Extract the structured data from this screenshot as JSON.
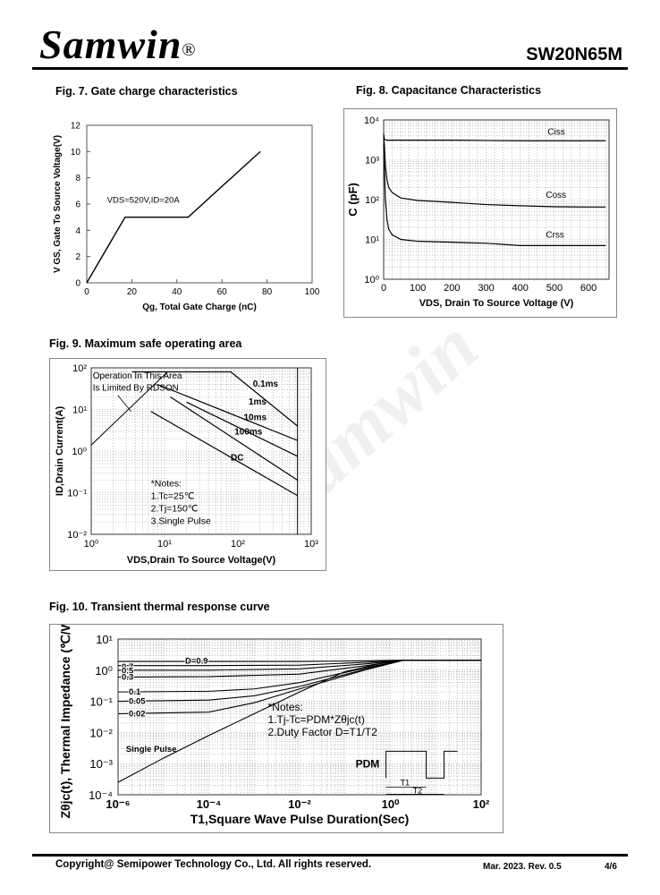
{
  "header": {
    "logo": "Samwin",
    "reg": "®",
    "part_number": "SW20N65M"
  },
  "watermark": "Samwin",
  "fig7": {
    "title": "Fig. 7. Gate charge characteristics",
    "ylabel": "V GS, Gate To Source Voltage(V)",
    "xlabel": "Qg, Total Gate Charge (nC)",
    "annotation": "VDS=520V,ID=20A",
    "chart_data": {
      "type": "line",
      "x": [
        0,
        17,
        45,
        77
      ],
      "y": [
        0,
        5,
        5,
        10
      ],
      "xlim": [
        0,
        100
      ],
      "ylim": [
        0,
        12
      ],
      "xticks": [
        "0",
        "20",
        "40",
        "60",
        "80",
        "100"
      ],
      "yticks": [
        "0",
        "2",
        "4",
        "6",
        "8",
        "10",
        "12"
      ]
    }
  },
  "fig8": {
    "title": "Fig. 8. Capacitance Characteristics",
    "ylabel": "C (pF)",
    "xlabel": "VDS, Drain To Source Voltage (V)",
    "chart_data": {
      "type": "line",
      "xlim": [
        0,
        660
      ],
      "ylim_log10": [
        0,
        4
      ],
      "xticks": [
        "0",
        "100",
        "200",
        "300",
        "400",
        "500",
        "600"
      ],
      "yticks": [
        "10⁰",
        "10¹",
        "10²",
        "10³",
        "10⁴"
      ],
      "series": [
        {
          "name": "Ciss",
          "x": [
            0,
            2,
            5,
            10,
            25,
            50,
            100,
            200,
            300,
            400,
            500,
            650
          ],
          "y": [
            4500,
            3300,
            3200,
            3100,
            3100,
            3100,
            3100,
            3100,
            3050,
            3000,
            3000,
            3000
          ]
        },
        {
          "name": "Coss",
          "x": [
            0,
            2,
            5,
            10,
            15,
            25,
            50,
            100,
            150,
            200,
            300,
            400,
            500,
            600,
            650
          ],
          "y": [
            4000,
            2500,
            700,
            300,
            200,
            150,
            110,
            95,
            90,
            85,
            75,
            70,
            66,
            65,
            65
          ]
        },
        {
          "name": "Crss",
          "x": [
            0,
            2,
            5,
            10,
            15,
            25,
            50,
            100,
            200,
            300,
            400,
            500,
            600,
            650
          ],
          "y": [
            2500,
            700,
            100,
            30,
            18,
            13,
            10,
            9,
            8.5,
            8,
            7,
            7,
            7,
            7
          ]
        }
      ]
    }
  },
  "fig9": {
    "title": "Fig. 9. Maximum safe operating area",
    "ylabel": "ID,Drain Current(A)",
    "xlabel": "VDS,Drain To Source Voltage(V)",
    "area_note_1": "Operation In This Area",
    "area_note_2": "Is Limited By RDSON",
    "notes": [
      "*Notes:",
      "1.Tc=25℃",
      "2.Tj=150℃",
      "3.Single Pulse"
    ],
    "labels": [
      "0.1ms",
      "1ms",
      "10ms",
      "100ms",
      "DC"
    ],
    "chart_data": {
      "type": "line",
      "xlim_log10": [
        0,
        3
      ],
      "ylim_log10": [
        -2,
        2
      ],
      "xticks": [
        "10⁰",
        "10¹",
        "10²",
        "10³"
      ],
      "yticks": [
        "10⁻²",
        "10⁻¹",
        "10⁰",
        "10¹",
        "10²"
      ],
      "series": [
        {
          "name": "0.1ms",
          "x": [
            3.6,
            80,
            650
          ],
          "y": [
            80,
            80,
            4
          ]
        },
        {
          "name": "1ms",
          "x": [
            8,
            650
          ],
          "y": [
            40,
            1.8
          ]
        },
        {
          "name": "10ms",
          "x": [
            20,
            650
          ],
          "y": [
            15,
            0.75
          ]
        },
        {
          "name": "100ms",
          "x": [
            12,
            650
          ],
          "y": [
            20,
            0.2
          ]
        },
        {
          "name": "DC",
          "x": [
            6.5,
            650
          ],
          "y": [
            9,
            0.085
          ]
        }
      ]
    }
  },
  "fig10": {
    "title": "Fig. 10. Transient thermal response curve",
    "ylabel": "Zθjc(t), Thermal Impedance (℃/W)",
    "xlabel": "T1,Square Wave Pulse Duration(Sec)",
    "notes": [
      "*Notes:",
      "1.Tj-Tc=PDM*Zθjc(t)",
      "2.Duty Factor D=T1/T2"
    ],
    "pdm": "PDM",
    "t1": "T1",
    "t2": "T2",
    "duty_labels": [
      "D=0.9",
      "0.7",
      "0.5",
      "0.3",
      "0.1",
      "0.05",
      "0.02"
    ],
    "single_pulse": "Single Pulse",
    "chart_data": {
      "type": "line",
      "xlim_log10": [
        -6,
        2
      ],
      "ylim_log10": [
        -4,
        1
      ],
      "xticks": [
        "10⁻⁶",
        "10⁻⁴",
        "10⁻²",
        "10⁰",
        "10²"
      ],
      "yticks": [
        "10⁻⁴",
        "10⁻³",
        "10⁻²",
        "10⁻¹",
        "10⁰",
        "10¹"
      ],
      "series": [
        {
          "name": "D=0.9",
          "x": [
            1e-06,
            0.0001,
            0.01,
            0.3,
            2,
            100
          ],
          "y": [
            1.9,
            1.9,
            1.9,
            2.0,
            2.1,
            2.1
          ]
        },
        {
          "name": "0.7",
          "x": [
            1e-06,
            0.0001,
            0.01,
            0.3,
            2,
            100
          ],
          "y": [
            1.4,
            1.4,
            1.45,
            1.8,
            2.1,
            2.1
          ]
        },
        {
          "name": "0.5",
          "x": [
            1e-06,
            0.0001,
            0.01,
            0.3,
            2,
            100
          ],
          "y": [
            1.0,
            1.0,
            1.1,
            1.6,
            2.1,
            2.1
          ]
        },
        {
          "name": "0.3",
          "x": [
            1e-06,
            0.0001,
            0.01,
            0.3,
            2,
            100
          ],
          "y": [
            0.6,
            0.62,
            0.75,
            1.4,
            2.1,
            2.1
          ]
        },
        {
          "name": "0.1",
          "x": [
            1e-06,
            0.0001,
            0.001,
            0.01,
            0.3,
            2,
            100
          ],
          "y": [
            0.2,
            0.21,
            0.25,
            0.4,
            1.2,
            2.1,
            2.1
          ]
        },
        {
          "name": "0.05",
          "x": [
            1e-06,
            0.0001,
            0.001,
            0.01,
            0.3,
            2,
            100
          ],
          "y": [
            0.1,
            0.11,
            0.15,
            0.3,
            1.1,
            2.1,
            2.1
          ]
        },
        {
          "name": "0.02",
          "x": [
            1e-06,
            0.0001,
            0.001,
            0.01,
            0.3,
            2,
            100
          ],
          "y": [
            0.04,
            0.045,
            0.09,
            0.25,
            1.05,
            2.1,
            2.1
          ]
        },
        {
          "name": "Single Pulse",
          "x": [
            1e-06,
            1e-05,
            0.0001,
            0.001,
            0.01,
            0.1,
            1,
            2,
            100
          ],
          "y": [
            0.00025,
            0.0015,
            0.008,
            0.04,
            0.2,
            0.9,
            1.9,
            2.1,
            2.1
          ]
        }
      ]
    }
  },
  "footer": {
    "copyright": "Copyright@ Semipower Technology Co., Ltd. All rights reserved.",
    "date": "Mar. 2023. Rev. 0.5",
    "page": "4/6"
  }
}
